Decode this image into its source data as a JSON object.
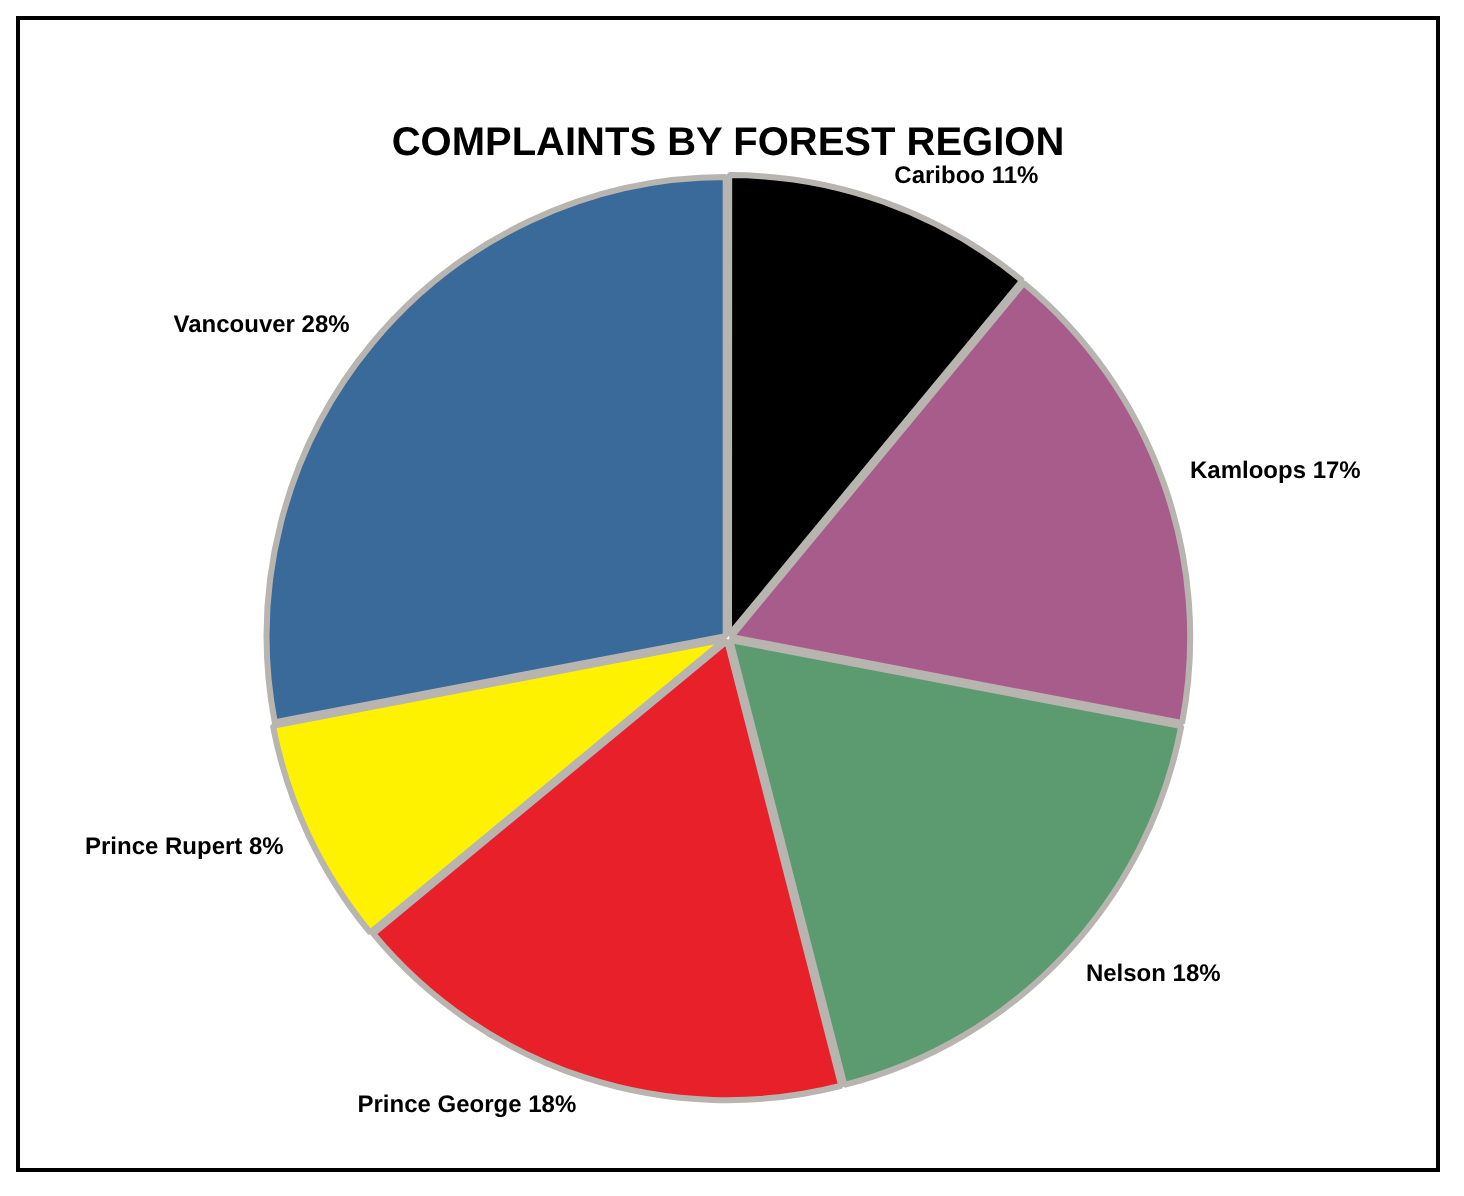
{
  "chart_data": {
    "type": "pie",
    "title": "COMPLAINTS BY FOREST REGION",
    "categories": [
      "Cariboo",
      "Kamloops",
      "Nelson",
      "Prince George",
      "Prince Rupert",
      "Vancouver"
    ],
    "values": [
      11,
      17,
      18,
      18,
      8,
      28
    ],
    "colors": [
      "#000000",
      "#a85c8c",
      "#5c9a70",
      "#e8202a",
      "#fff200",
      "#3a6a9a"
    ],
    "value_labels": [
      "11%",
      "17%",
      "18%",
      "18%",
      "8%",
      "28%"
    ]
  }
}
